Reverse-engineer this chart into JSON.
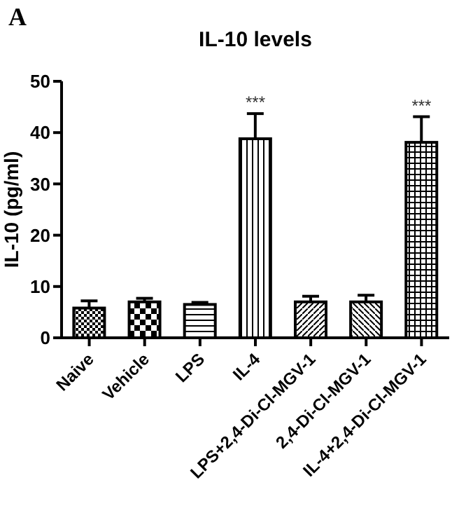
{
  "chart_data": {
    "type": "bar",
    "title": "IL-10 levels",
    "ylabel": "IL-10 (pg/ml)",
    "categories": [
      "Naive",
      "Vehicle",
      "LPS",
      "IL-4",
      "LPS+2,4-Di-Cl-MGV-1",
      "2,4-Di-Cl-MGV-1",
      "IL-4+2,4-Di-Cl-MGV-1"
    ],
    "values": [
      5.8,
      7.0,
      6.5,
      38.8,
      7.0,
      7.0,
      38.1
    ],
    "errors": [
      1.4,
      0.7,
      0.4,
      4.9,
      1.1,
      1.3,
      5.0
    ],
    "color": "#000000",
    "ylim": [
      0,
      50
    ],
    "yticks": [
      0,
      10,
      20,
      30,
      40,
      50
    ],
    "grid": false,
    "annotations": [
      "A",
      {
        "text": "***",
        "x": "IL-4",
        "y": 43.7
      },
      {
        "text": "***",
        "x": "IL-4+2,4-Di-Cl-MGV-1",
        "y": 43.1
      }
    ]
  }
}
